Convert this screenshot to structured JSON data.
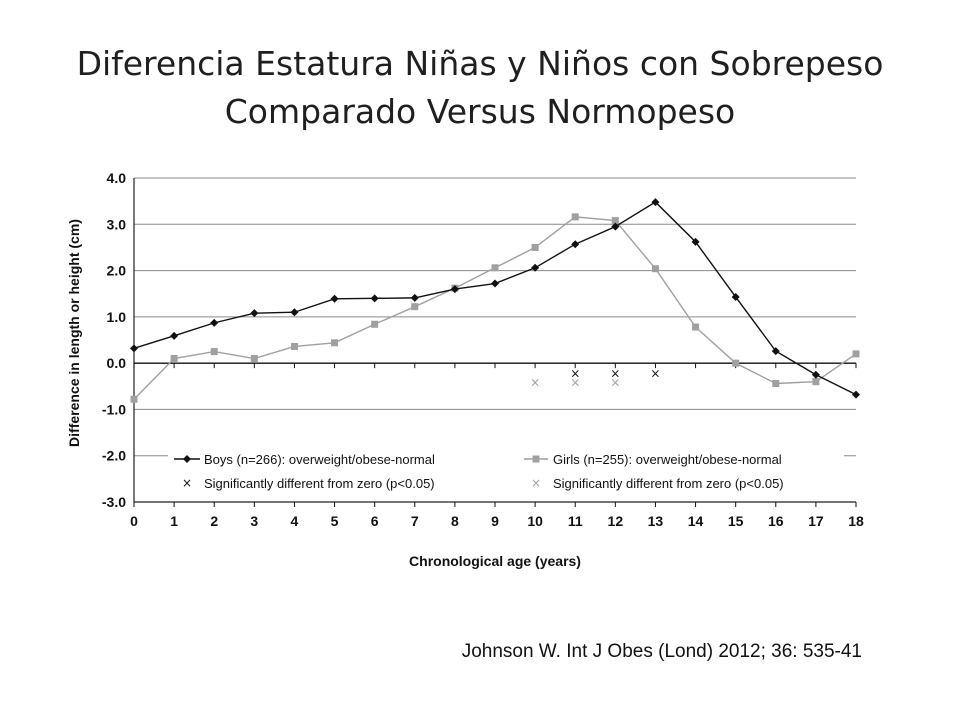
{
  "slide": {
    "title_line1": "Diferencia Estatura Niñas y Niños con Sobrepeso",
    "title_line2": "Comparado Versus Normopeso",
    "citation": "Johnson W. Int J Obes (Lond) 2012; 36: 535-41"
  },
  "chart_data": {
    "type": "line",
    "title": "",
    "xlabel": "Chronological age (years)",
    "ylabel": "Difference in length or height (cm)",
    "x": [
      0,
      1,
      2,
      3,
      4,
      5,
      6,
      7,
      8,
      9,
      10,
      11,
      12,
      13,
      14,
      15,
      16,
      17,
      18
    ],
    "x_tick_labels": [
      "0",
      "1",
      "2",
      "3",
      "4",
      "5",
      "6",
      "7",
      "8",
      "9",
      "10",
      "11",
      "12",
      "13",
      "14",
      "15",
      "16",
      "17",
      "18"
    ],
    "xlim": [
      0,
      18
    ],
    "ylim": [
      -3.0,
      4.0
    ],
    "y_ticks": [
      -3.0,
      -2.0,
      -1.0,
      0.0,
      1.0,
      2.0,
      3.0,
      4.0
    ],
    "y_tick_labels": [
      "-3.0",
      "-2.0",
      "-1.0",
      "0.0",
      "1.0",
      "2.0",
      "3.0",
      "4.0"
    ],
    "grid": "horizontal",
    "series": [
      {
        "name": "Boys (n=266): overweight/obese-normal",
        "color": "#111111",
        "marker": "diamond",
        "values": [
          0.32,
          0.59,
          0.87,
          1.08,
          1.1,
          1.39,
          1.4,
          1.41,
          1.6,
          1.72,
          2.06,
          2.57,
          2.95,
          3.48,
          2.62,
          1.43,
          0.26,
          -0.25,
          -0.68
        ]
      },
      {
        "name": "Girls (n=255): overweight/obese-normal",
        "color": "#a0a0a0",
        "marker": "square",
        "values": [
          -0.78,
          0.1,
          0.25,
          0.1,
          0.36,
          0.44,
          0.84,
          1.22,
          1.62,
          2.06,
          2.5,
          3.16,
          3.08,
          2.04,
          0.78,
          0.0,
          -0.44,
          -0.4,
          0.2
        ]
      }
    ],
    "significance_markers": [
      {
        "name": "Significantly different from zero (p<0.05)",
        "color": "#111111",
        "symbol": "×",
        "x": [
          11,
          12,
          13
        ],
        "y": [
          -0.22,
          -0.22,
          -0.22
        ]
      },
      {
        "name": "Significantly different from zero (p<0.05)",
        "color": "#a0a0a0",
        "symbol": "×",
        "x": [
          10,
          11,
          12
        ],
        "y": [
          -0.42,
          -0.42,
          -0.42
        ]
      }
    ],
    "legend": {
      "placement": "bottom",
      "entries": [
        "Boys (n=266): overweight/obese-normal",
        "Girls (n=255): overweight/obese-normal",
        "Significantly different from zero (p<0.05)",
        "Significantly different from zero (p<0.05)"
      ]
    }
  }
}
